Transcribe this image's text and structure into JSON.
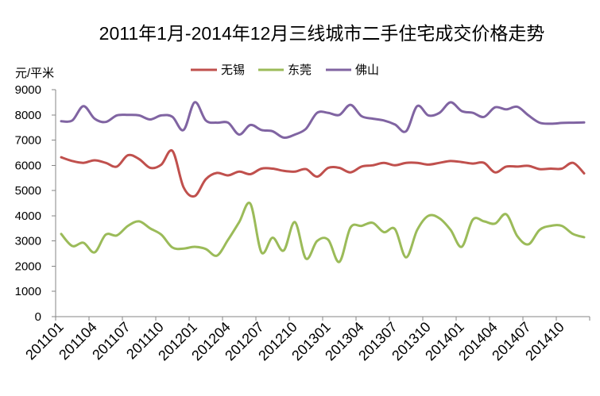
{
  "chart_data": {
    "type": "line",
    "title": "2011年1月-2014年12月三线城市二手住宅成交价格走势",
    "ylabel": "元/平米",
    "ylim": [
      0,
      9000
    ],
    "yticks": [
      0,
      1000,
      2000,
      3000,
      4000,
      5000,
      6000,
      7000,
      8000,
      9000
    ],
    "xtick_labels": [
      "201101",
      "201104",
      "201107",
      "201110",
      "201201",
      "201204",
      "201207",
      "201210",
      "201301",
      "201304",
      "201307",
      "201310",
      "201401",
      "201404",
      "201407",
      "201410"
    ],
    "grid": false,
    "legend": "top",
    "smooth": true,
    "series": [
      {
        "name": "无锡",
        "color": "#C0504D",
        "values": [
          6320,
          6170,
          6100,
          6200,
          6100,
          5950,
          6400,
          6250,
          5900,
          6030,
          6570,
          5130,
          4780,
          5450,
          5700,
          5600,
          5750,
          5650,
          5870,
          5870,
          5780,
          5750,
          5850,
          5550,
          5900,
          5900,
          5720,
          5950,
          6000,
          6100,
          6000,
          6100,
          6100,
          6030,
          6100,
          6170,
          6130,
          6070,
          6100,
          5720,
          5950,
          5950,
          5980,
          5850,
          5870,
          5870,
          6100,
          5680
        ]
      },
      {
        "name": "东莞",
        "color": "#9BBB59",
        "values": [
          3280,
          2800,
          2930,
          2550,
          3250,
          3220,
          3600,
          3780,
          3500,
          3250,
          2740,
          2700,
          2770,
          2680,
          2420,
          3050,
          3750,
          4480,
          2550,
          3130,
          2620,
          3750,
          2300,
          3000,
          3050,
          2170,
          3530,
          3600,
          3720,
          3350,
          3470,
          2350,
          3440,
          4000,
          3900,
          3440,
          2770,
          3850,
          3780,
          3690,
          4060,
          3190,
          2870,
          3440,
          3600,
          3600,
          3280,
          3150
        ]
      },
      {
        "name": "佛山",
        "color": "#8064A2",
        "values": [
          7750,
          7780,
          8350,
          7850,
          7720,
          7980,
          8000,
          7980,
          7820,
          7980,
          7920,
          7400,
          8500,
          7780,
          7690,
          7690,
          7220,
          7600,
          7400,
          7350,
          7100,
          7220,
          7450,
          8080,
          8080,
          8000,
          8400,
          7950,
          7850,
          7780,
          7620,
          7350,
          8350,
          7980,
          8080,
          8500,
          8150,
          8080,
          7920,
          8300,
          8220,
          8320,
          7980,
          7690,
          7650,
          7680,
          7690,
          7700
        ]
      }
    ]
  }
}
